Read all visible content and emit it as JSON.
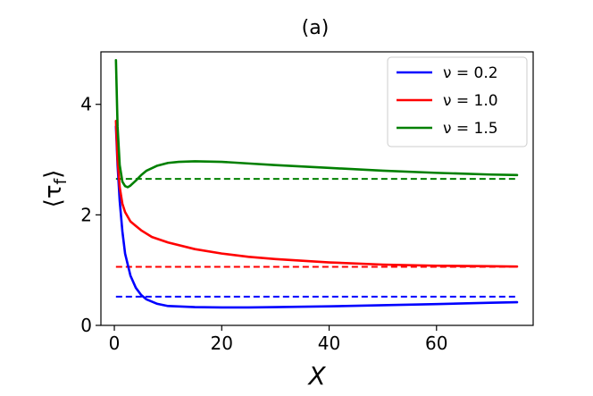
{
  "chart_data": {
    "type": "line",
    "title": "(a)",
    "xlabel": "X",
    "ylabel": "⟨τ_f⟩",
    "xlim": [
      -2.5,
      78
    ],
    "ylim": [
      0,
      4.95
    ],
    "xticks": [
      0,
      20,
      40,
      60
    ],
    "yticks": [
      0,
      2,
      4
    ],
    "grid": false,
    "legend_position": "top-right",
    "series": [
      {
        "name": "ν = 0.2",
        "color": "#0000ff",
        "style": "solid",
        "x": [
          0.3,
          0.6,
          1,
          1.5,
          2,
          3,
          4,
          5,
          6,
          8,
          10,
          15,
          20,
          25,
          30,
          40,
          50,
          60,
          70,
          75
        ],
        "y": [
          3.6,
          2.9,
          2.25,
          1.7,
          1.3,
          0.9,
          0.68,
          0.55,
          0.47,
          0.39,
          0.35,
          0.33,
          0.325,
          0.325,
          0.33,
          0.345,
          0.365,
          0.385,
          0.41,
          0.42
        ]
      },
      {
        "name": "ν = 1.0",
        "color": "#ff0000",
        "style": "solid",
        "x": [
          0.3,
          0.6,
          1,
          1.5,
          2,
          3,
          4,
          5,
          7,
          10,
          15,
          20,
          25,
          30,
          40,
          50,
          60,
          70,
          75
        ],
        "y": [
          3.7,
          3.0,
          2.5,
          2.2,
          2.05,
          1.88,
          1.8,
          1.72,
          1.6,
          1.5,
          1.38,
          1.3,
          1.24,
          1.2,
          1.14,
          1.1,
          1.08,
          1.07,
          1.065
        ]
      },
      {
        "name": "ν = 1.5",
        "color": "#008000",
        "style": "solid",
        "x": [
          0.3,
          0.6,
          1,
          1.5,
          2,
          2.5,
          3,
          4,
          5,
          6,
          8,
          10,
          12,
          15,
          20,
          25,
          30,
          40,
          50,
          60,
          70,
          75
        ],
        "y": [
          4.8,
          3.6,
          2.9,
          2.6,
          2.52,
          2.5,
          2.53,
          2.62,
          2.72,
          2.8,
          2.89,
          2.94,
          2.96,
          2.97,
          2.96,
          2.93,
          2.9,
          2.85,
          2.8,
          2.76,
          2.73,
          2.72
        ]
      }
    ],
    "reference_lines": [
      {
        "color": "#0000ff",
        "style": "dashed",
        "x": [
          0.3,
          75
        ],
        "y": [
          0.52,
          0.52
        ]
      },
      {
        "color": "#ff0000",
        "style": "dashed",
        "x": [
          0.3,
          75
        ],
        "y": [
          1.06,
          1.06
        ]
      },
      {
        "color": "#008000",
        "style": "dashed",
        "x": [
          0.3,
          75
        ],
        "y": [
          2.65,
          2.65
        ]
      }
    ]
  }
}
